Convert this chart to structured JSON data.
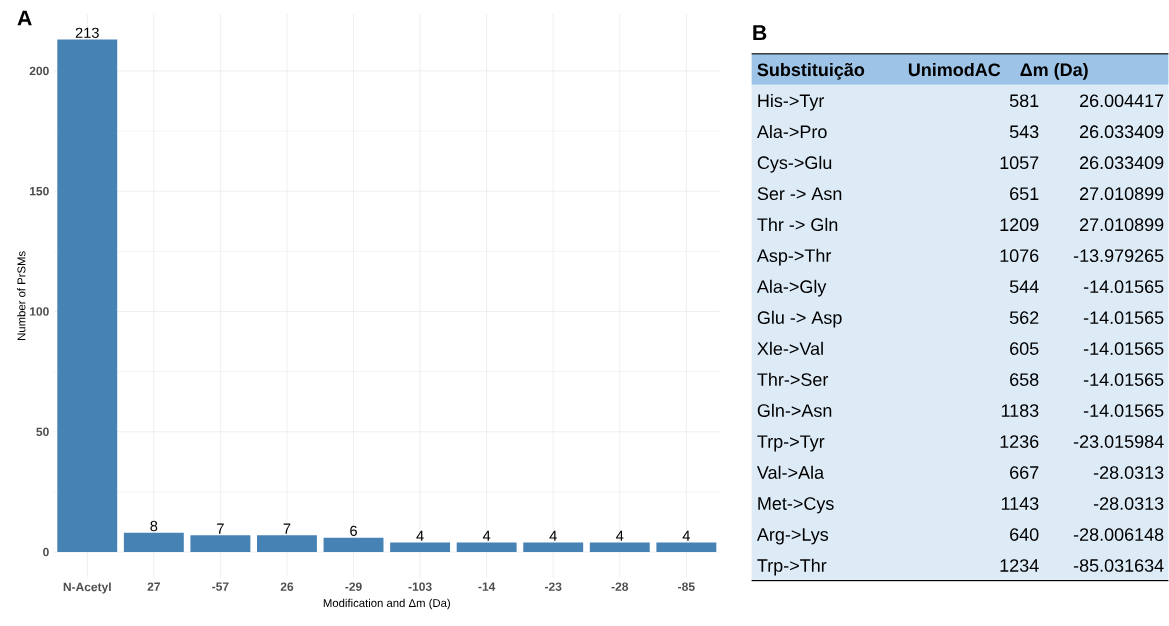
{
  "chart_data": [
    {
      "type": "bar",
      "title": "A",
      "xlabel": "Modification and Δm (Da)",
      "ylabel": "Number of PrSMs",
      "categories": [
        "N-Acetyl",
        "27",
        "-57",
        "26",
        "-29",
        "-103",
        "-14",
        "-23",
        "-28",
        "-85"
      ],
      "values": [
        213,
        8,
        7,
        7,
        6,
        4,
        4,
        4,
        4,
        4
      ],
      "color": "#4682b4",
      "ylim": [
        -10.65,
        223.65
      ],
      "yticks": [
        0,
        50,
        100,
        150,
        200
      ],
      "grid": true,
      "data_labels": true
    },
    {
      "type": "other",
      "title": "B",
      "categories": [
        "Substituição",
        "UnimodAC",
        "Δm (Da)"
      ],
      "annotations": [
        "His->Tyr",
        "581",
        "26.004417",
        "Ala->Pro",
        "543",
        "26.033409",
        "Cys->Glu",
        "1057",
        "26.033409",
        "Ser -> Asn",
        "651",
        "27.010899",
        "Thr -> Gln",
        "1209",
        "27.010899",
        "Asp->Thr",
        "1076",
        "-13.979265",
        "Ala->Gly",
        "544",
        "-14.01565",
        "Glu -> Asp",
        "562",
        "-14.01565",
        "Xle->Val",
        "605",
        "-14.01565",
        "Thr->Ser",
        "658",
        "-14.01565",
        "Gln->Asn",
        "1183",
        "-14.01565",
        "Trp->Tyr",
        "1236",
        "-23.015984",
        "Val->Ala",
        "667",
        "-28.0313",
        "Met->Cys",
        "1143",
        "-28.0313",
        "Arg->Lys",
        "640",
        "-28.006148",
        "Trp->Thr",
        "1234",
        "-85.031634"
      ]
    }
  ]
}
